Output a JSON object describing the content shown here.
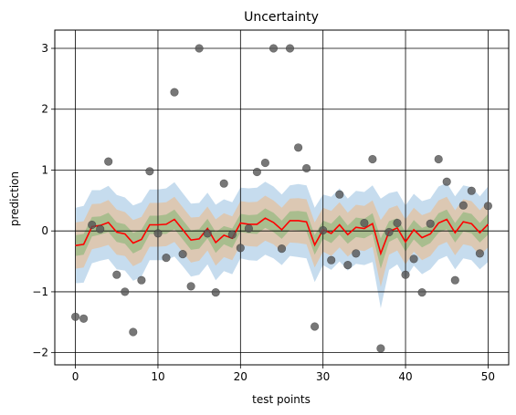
{
  "chart_data": {
    "type": "line",
    "title": "Uncertainty",
    "xlabel": "test points",
    "ylabel": "prediction",
    "xlim": [
      -2.5,
      52.5
    ],
    "ylim": [
      -2.2,
      3.3
    ],
    "grid": true,
    "xticks": [
      0,
      10,
      20,
      30,
      40,
      50
    ],
    "yticks": [
      -2,
      -1,
      0,
      1,
      2,
      3
    ],
    "xtick_labels": [
      "0",
      "10",
      "20",
      "30",
      "40",
      "50"
    ],
    "ytick_labels": [
      "−2",
      "−1",
      "0",
      "1",
      "2",
      "3"
    ],
    "colors": {
      "band_outer": "#c6dcee",
      "band_middle": "#dcc8b3",
      "band_inner": "#a9bd8e",
      "line": "#ff0000",
      "points": "#555555",
      "grid": "#000000"
    },
    "x": [
      0,
      1,
      2,
      3,
      4,
      5,
      6,
      7,
      8,
      9,
      10,
      11,
      12,
      13,
      14,
      15,
      16,
      17,
      18,
      19,
      20,
      21,
      22,
      23,
      24,
      25,
      26,
      27,
      28,
      29,
      30,
      31,
      32,
      33,
      34,
      35,
      36,
      37,
      38,
      39,
      40,
      41,
      42,
      43,
      44,
      45,
      46,
      47,
      48,
      49,
      50
    ],
    "mean": [
      -0.24,
      -0.22,
      0.07,
      0.09,
      0.14,
      -0.02,
      -0.05,
      -0.2,
      -0.14,
      0.1,
      0.1,
      0.11,
      0.19,
      0.02,
      -0.15,
      -0.13,
      0.04,
      -0.19,
      -0.07,
      -0.12,
      0.13,
      0.11,
      0.11,
      0.21,
      0.14,
      0.02,
      0.17,
      0.17,
      0.15,
      -0.23,
      0.02,
      -0.04,
      0.1,
      -0.06,
      0.06,
      0.04,
      0.12,
      -0.37,
      -0.01,
      0.05,
      -0.18,
      0.02,
      -0.11,
      -0.05,
      0.13,
      0.19,
      -0.03,
      0.15,
      0.12,
      -0.03,
      0.11
    ],
    "inner_halfwidth": [
      0.17,
      0.17,
      0.16,
      0.15,
      0.16,
      0.16,
      0.16,
      0.17,
      0.16,
      0.15,
      0.15,
      0.16,
      0.16,
      0.16,
      0.16,
      0.16,
      0.16,
      0.17,
      0.15,
      0.16,
      0.15,
      0.15,
      0.16,
      0.16,
      0.16,
      0.15,
      0.15,
      0.16,
      0.16,
      0.16,
      0.15,
      0.16,
      0.16,
      0.15,
      0.16,
      0.16,
      0.17,
      0.25,
      0.17,
      0.16,
      0.16,
      0.16,
      0.16,
      0.15,
      0.16,
      0.16,
      0.16,
      0.16,
      0.16,
      0.16,
      0.17
    ],
    "middle_halfwidth": [
      0.38,
      0.38,
      0.37,
      0.36,
      0.37,
      0.37,
      0.36,
      0.38,
      0.37,
      0.36,
      0.36,
      0.36,
      0.37,
      0.37,
      0.37,
      0.36,
      0.36,
      0.38,
      0.36,
      0.36,
      0.36,
      0.36,
      0.37,
      0.37,
      0.36,
      0.36,
      0.36,
      0.37,
      0.37,
      0.37,
      0.36,
      0.37,
      0.37,
      0.36,
      0.37,
      0.37,
      0.38,
      0.55,
      0.38,
      0.37,
      0.37,
      0.36,
      0.37,
      0.36,
      0.37,
      0.37,
      0.37,
      0.37,
      0.37,
      0.37,
      0.38
    ],
    "outer_halfwidth": [
      0.62,
      0.63,
      0.6,
      0.58,
      0.6,
      0.61,
      0.6,
      0.62,
      0.61,
      0.58,
      0.58,
      0.59,
      0.61,
      0.6,
      0.6,
      0.59,
      0.59,
      0.62,
      0.59,
      0.59,
      0.58,
      0.59,
      0.6,
      0.6,
      0.59,
      0.58,
      0.58,
      0.6,
      0.6,
      0.61,
      0.58,
      0.6,
      0.6,
      0.59,
      0.6,
      0.6,
      0.63,
      0.9,
      0.63,
      0.6,
      0.6,
      0.59,
      0.6,
      0.58,
      0.6,
      0.6,
      0.6,
      0.6,
      0.6,
      0.6,
      0.62
    ],
    "observed": [
      -1.41,
      -1.44,
      0.1,
      0.03,
      1.14,
      -0.72,
      -1.0,
      -1.66,
      -0.81,
      0.98,
      -0.04,
      -0.44,
      2.28,
      -0.38,
      -0.91,
      3.0,
      -0.04,
      -1.01,
      0.78,
      -0.06,
      -0.28,
      0.04,
      0.97,
      1.12,
      3.0,
      -0.29,
      3.0,
      1.37,
      1.03,
      -1.57,
      0.01,
      -0.48,
      0.6,
      -0.56,
      -0.37,
      0.13,
      1.18,
      -1.93,
      -0.02,
      0.13,
      -0.72,
      -0.46,
      -1.01,
      0.12,
      1.18,
      0.81,
      -0.81,
      0.42,
      0.66,
      -0.37,
      0.41
    ]
  }
}
